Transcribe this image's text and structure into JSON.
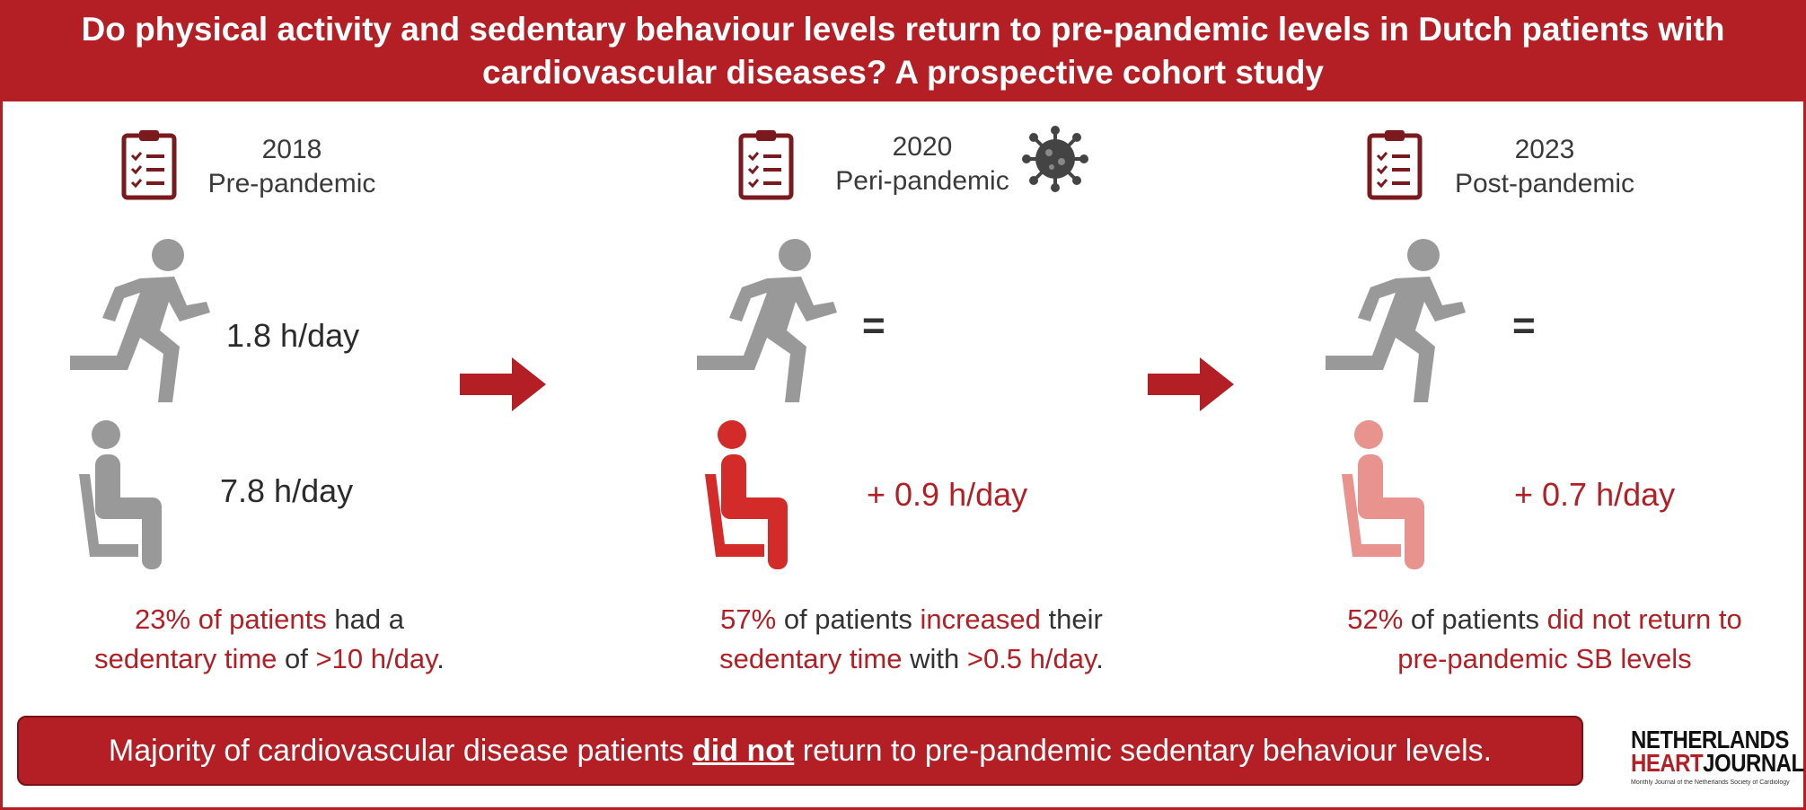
{
  "title": "Do physical activity and sedentary behaviour levels return to pre-pandemic levels in Dutch patients with cardiovascular diseases? A prospective cohort study",
  "colors": {
    "primary": "#b31f24",
    "grey_icon": "#999999",
    "sitting_2020": "#d32a2a",
    "sitting_2023": "#e8938e",
    "clipboard": "#7a1a1e"
  },
  "icons": {
    "clipboard": "clipboard-checklist-icon",
    "runner": "running-person-icon",
    "sitter": "sitting-person-icon",
    "virus": "coronavirus-icon",
    "arrow": "right-arrow-icon"
  },
  "panels": [
    {
      "year": "2018",
      "phase": "Pre-pandemic",
      "activity": "1.8 h/day",
      "sedentary": "7.8 h/day",
      "stat": {
        "p1": "23% of patients",
        "p2": " had a",
        "p3": "sedentary time",
        "p4": " of ",
        "p5": ">10 h/day",
        "p6": "."
      }
    },
    {
      "year": "2020",
      "phase": "Peri-pandemic",
      "activity": "=",
      "sedentary": "+ 0.9 h/day",
      "stat": {
        "p1": "57%",
        "p2": " of patients ",
        "p3": "increased",
        "p4": " their",
        "p5": "sedentary time",
        "p6": " with ",
        "p7": ">0.5 h/day",
        "p8": "."
      }
    },
    {
      "year": "2023",
      "phase": "Post-pandemic",
      "activity": "=",
      "sedentary": "+ 0.7 h/day",
      "stat": {
        "p1": "52%",
        "p2": " of patients ",
        "p3": "did not return to",
        "p4": "pre-pandemic SB levels"
      }
    }
  ],
  "conclusion": {
    "before": "Majority of cardiovascular disease patients ",
    "emph": "did not",
    "after": " return to pre-pandemic sedentary behaviour levels."
  },
  "logo": {
    "line1": "NETHERLANDS",
    "line2a": "HEART",
    "line2b": "JOURNAL",
    "subtitle": "Monthly Journal of the Netherlands Society of Cardiology"
  }
}
